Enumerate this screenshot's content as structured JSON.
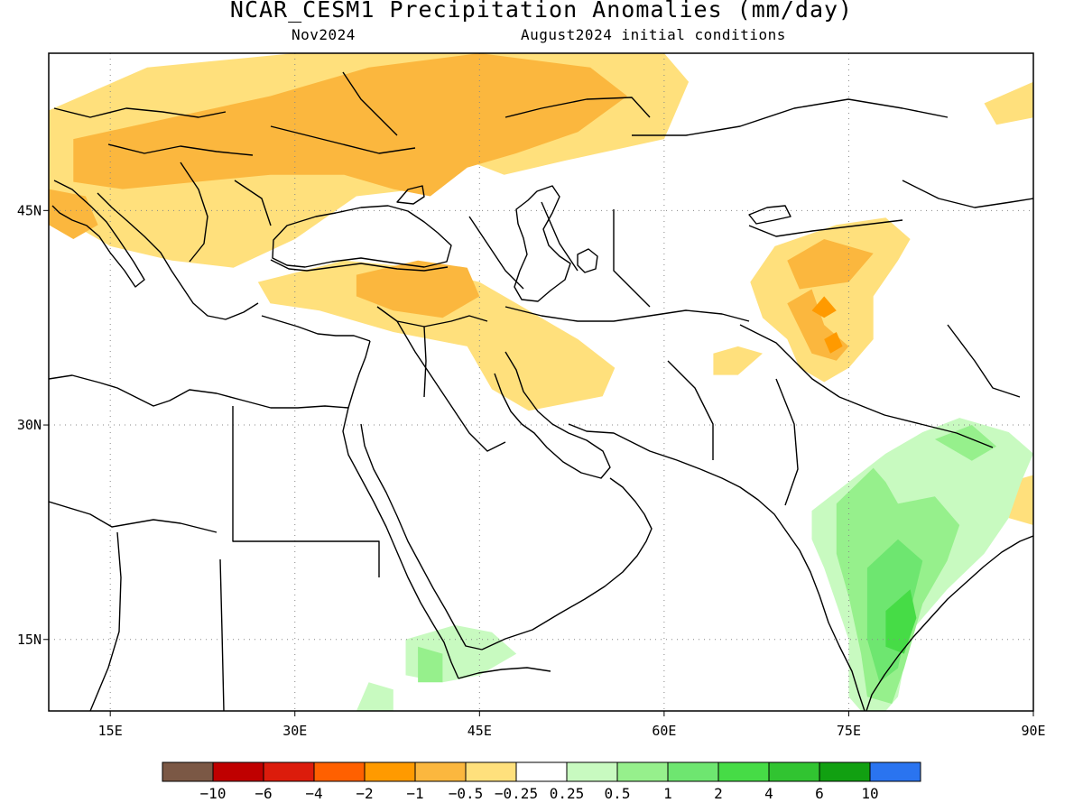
{
  "title": "NCAR_CESM1 Precipitation Anomalies (mm/day)",
  "valid_month": "Nov2024",
  "init_conditions": "August2024 initial conditions",
  "map": {
    "lon_range": [
      10,
      90
    ],
    "lat_range": [
      10,
      56
    ],
    "lon_ticks": [
      {
        "value": 15,
        "label": "15E"
      },
      {
        "value": 30,
        "label": "30E"
      },
      {
        "value": 45,
        "label": "45E"
      },
      {
        "value": 60,
        "label": "60E"
      },
      {
        "value": 75,
        "label": "75E"
      },
      {
        "value": 90,
        "label": "90E"
      }
    ],
    "lat_ticks": [
      {
        "value": 45,
        "label": "45N"
      },
      {
        "value": 30,
        "label": "30N"
      },
      {
        "value": 15,
        "label": "15N"
      }
    ],
    "grid": "dotted"
  },
  "colorbar": {
    "colors": [
      "#7b5845",
      "#bf0000",
      "#dc1c0c",
      "#ff6000",
      "#ff9a00",
      "#fbb73e",
      "#ffe07c",
      "#ffffff",
      "#c8fac0",
      "#96f08c",
      "#6ee670",
      "#46dc46",
      "#31c431",
      "#11a011",
      "#2a74f0"
    ],
    "labels": [
      "−10",
      "−6",
      "−4",
      "−2",
      "−1",
      "−0.5",
      "−0.25",
      "0.25",
      "0.5",
      "1",
      "2",
      "4",
      "6",
      "10"
    ]
  },
  "anomaly_regions": [
    {
      "level": "dry_light",
      "color": "#ffe07c",
      "points": [
        [
          10,
          52
        ],
        [
          18,
          55
        ],
        [
          30,
          56
        ],
        [
          60,
          56
        ],
        [
          62,
          54
        ],
        [
          60,
          50
        ],
        [
          52,
          48.5
        ],
        [
          47,
          47.5
        ],
        [
          44,
          48.5
        ],
        [
          40,
          46.5
        ],
        [
          35,
          46
        ],
        [
          30,
          43
        ],
        [
          25,
          41
        ],
        [
          20,
          41.5
        ],
        [
          15,
          42.5
        ],
        [
          12,
          44
        ],
        [
          10,
          45
        ]
      ]
    },
    {
      "level": "dry_light",
      "color": "#ffe07c",
      "points": [
        [
          27,
          40
        ],
        [
          34,
          41.5
        ],
        [
          40,
          41
        ],
        [
          45,
          40
        ],
        [
          48,
          38.5
        ],
        [
          53,
          36
        ],
        [
          56,
          34
        ],
        [
          55,
          32
        ],
        [
          49,
          31
        ],
        [
          46,
          32.5
        ],
        [
          44,
          35.5
        ],
        [
          38,
          36.5
        ],
        [
          32,
          38
        ],
        [
          28,
          38.5
        ]
      ]
    },
    {
      "level": "dry_light",
      "color": "#ffe07c",
      "points": [
        [
          67,
          40
        ],
        [
          69,
          42.5
        ],
        [
          74,
          44
        ],
        [
          78,
          44.5
        ],
        [
          80,
          43
        ],
        [
          79,
          41.5
        ],
        [
          77,
          39
        ],
        [
          77,
          36
        ],
        [
          75,
          34
        ],
        [
          73,
          33
        ],
        [
          71,
          34
        ],
        [
          70,
          36
        ],
        [
          68,
          37.5
        ]
      ]
    },
    {
      "level": "dry_light",
      "color": "#ffe07c",
      "points": [
        [
          64,
          35
        ],
        [
          66,
          35.5
        ],
        [
          68,
          35
        ],
        [
          66,
          33.5
        ],
        [
          64,
          33.5
        ]
      ]
    },
    {
      "level": "dry_light",
      "color": "#ffe07c",
      "points": [
        [
          86,
          52.5
        ],
        [
          90,
          54
        ],
        [
          90,
          51.5
        ],
        [
          87,
          51
        ]
      ]
    },
    {
      "level": "dry_light",
      "color": "#ffe07c",
      "points": [
        [
          88,
          26
        ],
        [
          90,
          26.5
        ],
        [
          90,
          23
        ],
        [
          88,
          23.5
        ]
      ]
    },
    {
      "level": "dry_mod",
      "color": "#fbb73e",
      "points": [
        [
          12,
          50
        ],
        [
          20,
          51.5
        ],
        [
          28,
          53
        ],
        [
          36,
          55
        ],
        [
          45,
          56
        ],
        [
          54,
          55
        ],
        [
          57,
          53
        ],
        [
          53,
          50.5
        ],
        [
          48,
          49
        ],
        [
          44,
          48
        ],
        [
          41,
          46
        ],
        [
          38,
          46.5
        ],
        [
          34,
          47.5
        ],
        [
          28,
          47.5
        ],
        [
          22,
          47
        ],
        [
          16,
          46.5
        ],
        [
          12,
          47
        ]
      ]
    },
    {
      "level": "dry_mod",
      "color": "#fbb73e",
      "points": [
        [
          10,
          46.5
        ],
        [
          13,
          46
        ],
        [
          14,
          44
        ],
        [
          12,
          43
        ],
        [
          10,
          44
        ]
      ]
    },
    {
      "level": "dry_mod",
      "color": "#fbb73e",
      "points": [
        [
          35,
          40.5
        ],
        [
          40,
          41.5
        ],
        [
          44,
          41
        ],
        [
          45,
          39
        ],
        [
          42,
          37.5
        ],
        [
          38,
          38
        ],
        [
          35,
          39
        ]
      ]
    },
    {
      "level": "dry_mod",
      "color": "#fbb73e",
      "points": [
        [
          70,
          41.5
        ],
        [
          73,
          43
        ],
        [
          77,
          42
        ],
        [
          75,
          40
        ],
        [
          71,
          39.5
        ]
      ]
    },
    {
      "level": "dry_mod",
      "color": "#fbb73e",
      "points": [
        [
          70,
          38.5
        ],
        [
          72,
          39.5
        ],
        [
          73,
          37
        ],
        [
          75,
          35.5
        ],
        [
          74,
          34.5
        ],
        [
          72,
          35
        ]
      ]
    },
    {
      "level": "dry_strong",
      "color": "#ff9a00",
      "points": [
        [
          73,
          39
        ],
        [
          74,
          38
        ],
        [
          73,
          37.5
        ],
        [
          72,
          38
        ]
      ]
    },
    {
      "level": "dry_strong",
      "color": "#ff9a00",
      "points": [
        [
          73,
          36
        ],
        [
          74,
          36.5
        ],
        [
          74.5,
          35.5
        ],
        [
          73.5,
          35
        ]
      ]
    },
    {
      "level": "wet_light",
      "color": "#c8fac0",
      "points": [
        [
          72,
          24
        ],
        [
          75,
          26
        ],
        [
          78,
          28
        ],
        [
          81,
          29.5
        ],
        [
          84,
          30.5
        ],
        [
          88,
          29.5
        ],
        [
          90,
          28
        ],
        [
          89,
          26
        ],
        [
          88,
          23.5
        ],
        [
          86,
          21
        ],
        [
          83,
          18.5
        ],
        [
          80,
          15.5
        ],
        [
          79,
          11
        ],
        [
          77,
          9
        ],
        [
          75,
          11
        ],
        [
          75,
          15
        ],
        [
          73,
          20
        ],
        [
          72,
          22
        ]
      ]
    },
    {
      "level": "wet_light",
      "color": "#c8fac0",
      "points": [
        [
          39,
          15
        ],
        [
          43,
          16
        ],
        [
          46,
          15.5
        ],
        [
          48,
          14
        ],
        [
          45,
          12.5
        ],
        [
          42,
          12
        ],
        [
          39,
          12.5
        ]
      ]
    },
    {
      "level": "wet_light",
      "color": "#c8fac0",
      "points": [
        [
          35,
          10
        ],
        [
          36,
          12
        ],
        [
          38,
          11.5
        ],
        [
          38,
          10
        ]
      ]
    },
    {
      "level": "wet_mod",
      "color": "#96f08c",
      "points": [
        [
          74,
          24.5
        ],
        [
          77,
          27
        ],
        [
          78,
          26
        ],
        [
          79,
          24.5
        ],
        [
          82,
          25
        ],
        [
          84,
          23
        ],
        [
          83,
          20.5
        ],
        [
          81,
          17.5
        ],
        [
          79.5,
          13
        ],
        [
          78.5,
          10.5
        ],
        [
          76.5,
          11
        ],
        [
          76,
          14
        ],
        [
          75,
          18
        ],
        [
          74,
          21
        ]
      ]
    },
    {
      "level": "wet_mod",
      "color": "#96f08c",
      "points": [
        [
          82,
          29
        ],
        [
          85,
          30
        ],
        [
          87,
          28.5
        ],
        [
          85,
          27.5
        ]
      ]
    },
    {
      "level": "wet_mod",
      "color": "#96f08c",
      "points": [
        [
          40,
          14.5
        ],
        [
          42,
          14
        ],
        [
          42,
          12
        ],
        [
          40,
          12
        ]
      ]
    },
    {
      "level": "wet_strong",
      "color": "#6ee670",
      "points": [
        [
          76.5,
          20
        ],
        [
          79,
          22
        ],
        [
          81,
          20.5
        ],
        [
          80,
          17
        ],
        [
          79,
          13
        ],
        [
          77.5,
          12
        ],
        [
          76.5,
          15
        ]
      ]
    },
    {
      "level": "wet_max",
      "color": "#46dc46",
      "points": [
        [
          78,
          17
        ],
        [
          80,
          18.5
        ],
        [
          80.5,
          16.5
        ],
        [
          79.5,
          14
        ],
        [
          78,
          14.5
        ]
      ]
    }
  ]
}
